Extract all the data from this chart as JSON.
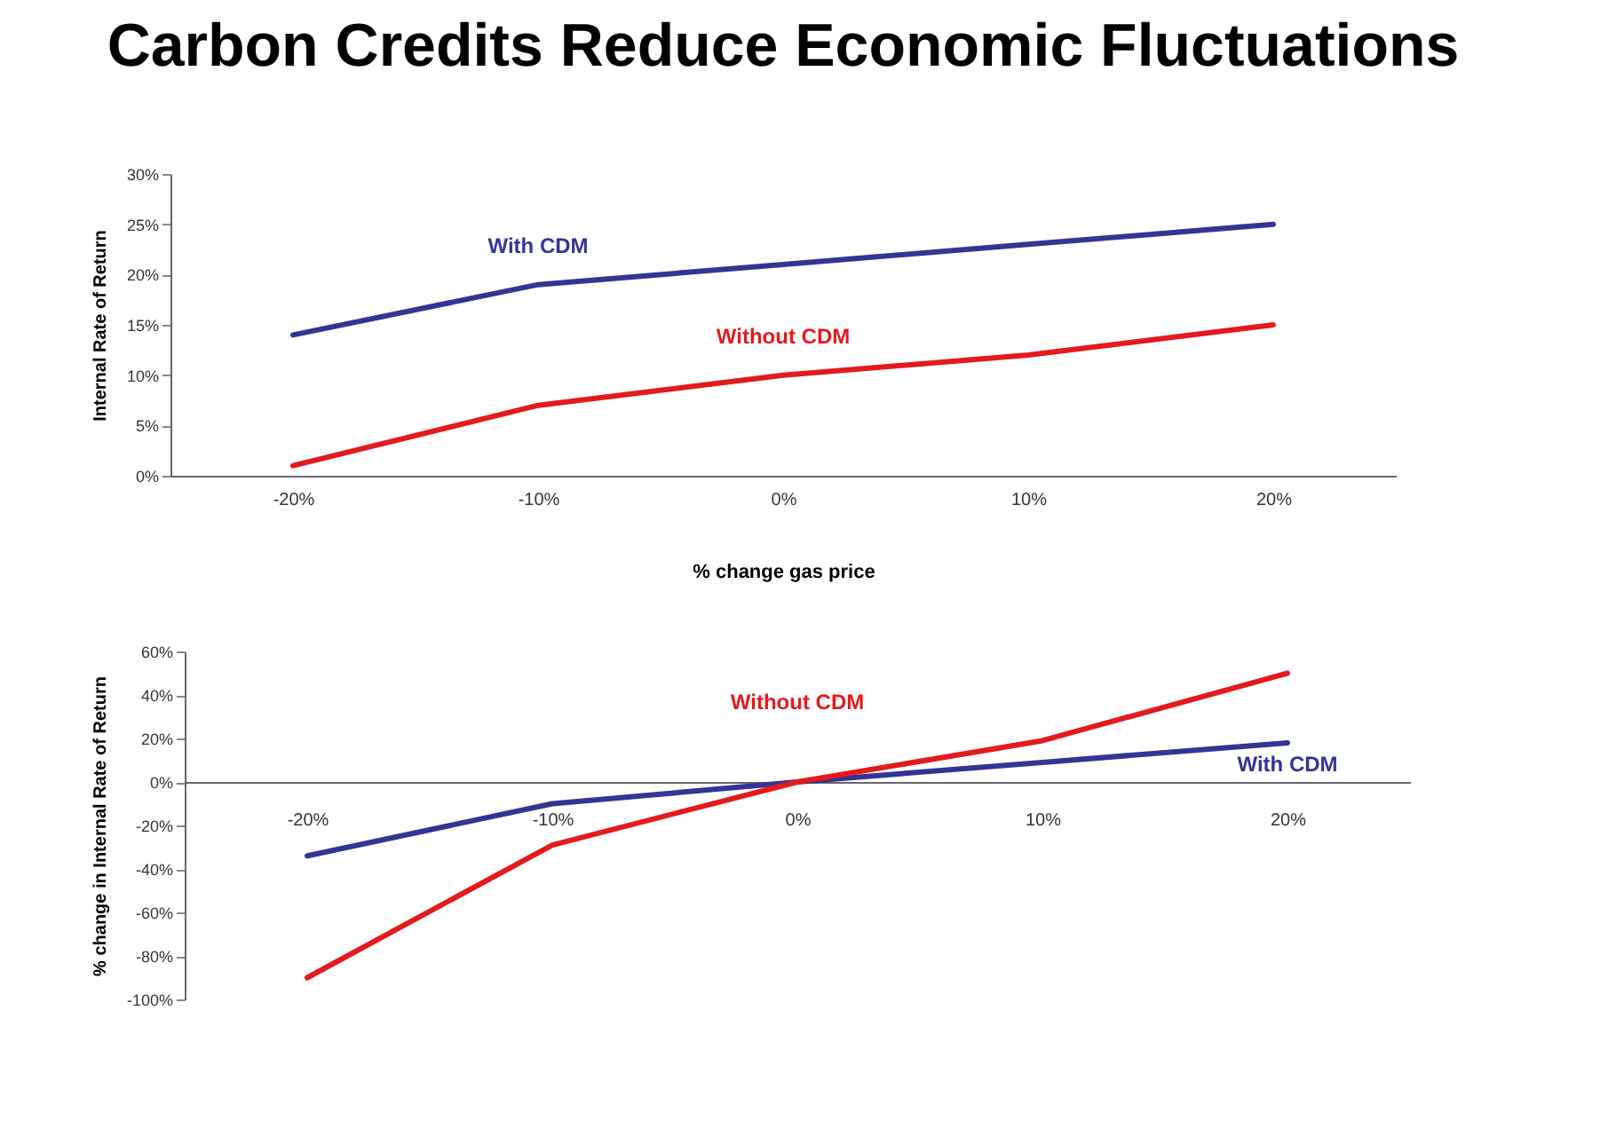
{
  "chart_data": [
    {
      "type": "line",
      "title": "Carbon Credits Reduce Economic Fluctuations",
      "xlabel": "% change gas price",
      "ylabel": "Internal Rate of Return",
      "categories": [
        "-20%",
        "-10%",
        "0%",
        "10%",
        "20%"
      ],
      "series": [
        {
          "name": "With CDM",
          "color": "#343494",
          "values": [
            14,
            19,
            21,
            23,
            25
          ]
        },
        {
          "name": "Without CDM",
          "color": "#e41a1c",
          "values": [
            1,
            7,
            10,
            12,
            15
          ]
        }
      ],
      "ylim": [
        0,
        30
      ],
      "yticks": [
        {
          "value": 0,
          "label": "0%"
        },
        {
          "value": 5,
          "label": "5%"
        },
        {
          "value": 10,
          "label": "10%"
        },
        {
          "value": 15,
          "label": "15%"
        },
        {
          "value": 20,
          "label": "20%"
        },
        {
          "value": 25,
          "label": "25%"
        },
        {
          "value": 30,
          "label": "30%"
        }
      ],
      "line_style": "solid"
    },
    {
      "type": "line",
      "ylabel": "% change in Internal Rate of Return",
      "categories": [
        "-20%",
        "-10%",
        "0%",
        "10%",
        "20%"
      ],
      "series": [
        {
          "name": "With CDM",
          "color": "#343494",
          "values": [
            -34,
            -10,
            0,
            9,
            18
          ]
        },
        {
          "name": "Without CDM",
          "color": "#e41a1c",
          "values": [
            -90,
            -29,
            0,
            19,
            50
          ]
        }
      ],
      "ylim": [
        -100,
        60
      ],
      "yticks": [
        {
          "value": -100,
          "label": "-100%"
        },
        {
          "value": -80,
          "label": "-80%"
        },
        {
          "value": -60,
          "label": "-60%"
        },
        {
          "value": -40,
          "label": "-40%"
        },
        {
          "value": -20,
          "label": "-20%"
        },
        {
          "value": 0,
          "label": "0%"
        },
        {
          "value": 20,
          "label": "20%"
        },
        {
          "value": 40,
          "label": "40%"
        },
        {
          "value": 60,
          "label": "60%"
        }
      ],
      "line_style": "solid"
    }
  ]
}
